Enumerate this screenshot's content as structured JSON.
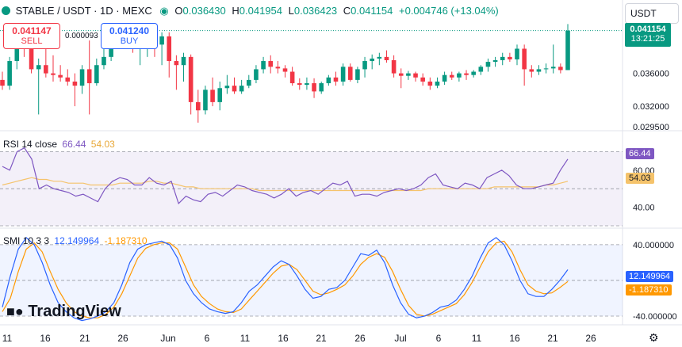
{
  "header": {
    "symbol": "STABLE / USDT · 1D · MEXC",
    "o_label": "O",
    "o_value": "0.036430",
    "h_label": "H",
    "h_value": "0.041954",
    "l_label": "L",
    "l_value": "0.036423",
    "c_label": "C",
    "c_value": "0.041154",
    "change": "+0.004746 (+13.04%)"
  },
  "currency_select": {
    "value": "USDT"
  },
  "trade_buttons": {
    "sell_price": "0.041147",
    "sell_label": "SELL",
    "spread": "0.000093",
    "buy_price": "0.041240",
    "buy_label": "BUY"
  },
  "price_axis": {
    "ticks": [
      "0.036000",
      "0.032000",
      "0.029500"
    ],
    "last_price": "0.041154",
    "countdown": "13:21:25"
  },
  "rsi": {
    "label": "RSI",
    "params": "14 close",
    "value": "66.44",
    "ma_value": "54.03",
    "ticks": [
      "60.00",
      "40.00"
    ]
  },
  "smi": {
    "label": "SMI",
    "params": "10 3 3",
    "value": "12.149964",
    "signal_value": "-1.187310",
    "ticks": [
      "40.000000",
      "-40.000000"
    ]
  },
  "time_axis": {
    "labels": [
      "11",
      "16",
      "21",
      "26",
      "Jun",
      "6",
      "11",
      "16",
      "21",
      "26",
      "Jul",
      "6",
      "11",
      "16",
      "21",
      "26"
    ]
  },
  "logo": {
    "text": "TradingView"
  },
  "colors": {
    "up": "#089981",
    "down": "#f23645",
    "rsi": "#7e57c2",
    "rsi_ma": "#f5c36b",
    "smi": "#2962ff",
    "smi_signal": "#ff9800"
  },
  "chart_data": [
    {
      "type": "candlestick",
      "title": "STABLE / USDT · 1D · MEXC",
      "ylim": [
        0.0295,
        0.043
      ],
      "series": [
        {
          "name": "STABLE / USDT",
          "ohlc": [
            [
              0.0352,
              0.0362,
              0.034,
              0.0345
            ],
            [
              0.0345,
              0.038,
              0.034,
              0.0375
            ],
            [
              0.0375,
              0.042,
              0.0365,
              0.041
            ],
            [
              0.041,
              0.0415,
              0.038,
              0.039
            ],
            [
              0.039,
              0.0395,
              0.036,
              0.0365
            ],
            [
              0.0365,
              0.0378,
              0.031,
              0.037
            ],
            [
              0.037,
              0.04,
              0.0355,
              0.036
            ],
            [
              0.036,
              0.0382,
              0.035,
              0.0358
            ],
            [
              0.0358,
              0.037,
              0.035,
              0.0355
            ],
            [
              0.0355,
              0.0365,
              0.0345,
              0.035
            ],
            [
              0.035,
              0.036,
              0.032,
              0.0345
            ],
            [
              0.0345,
              0.037,
              0.0335,
              0.0365
            ],
            [
              0.0365,
              0.04,
              0.031,
              0.0348
            ],
            [
              0.0348,
              0.0378,
              0.0345,
              0.037
            ],
            [
              0.037,
              0.0395,
              0.0365,
              0.038
            ],
            [
              0.038,
              0.04,
              0.0375,
              0.0395
            ],
            [
              0.0395,
              0.0407,
              0.039,
              0.04
            ],
            [
              0.04,
              0.0407,
              0.039,
              0.0395
            ],
            [
              0.0395,
              0.0402,
              0.0385,
              0.039
            ],
            [
              0.039,
              0.0402,
              0.037,
              0.0398
            ],
            [
              0.0398,
              0.0405,
              0.038,
              0.04
            ],
            [
              0.04,
              0.041,
              0.038,
              0.0395
            ],
            [
              0.0395,
              0.041,
              0.037,
              0.0405
            ],
            [
              0.0405,
              0.041,
              0.0355,
              0.0375
            ],
            [
              0.0375,
              0.0382,
              0.034,
              0.037
            ],
            [
              0.037,
              0.0385,
              0.035,
              0.038
            ],
            [
              0.038,
              0.0383,
              0.031,
              0.0325
            ],
            [
              0.0325,
              0.034,
              0.03,
              0.0315
            ],
            [
              0.0315,
              0.0345,
              0.031,
              0.034
            ],
            [
              0.034,
              0.0355,
              0.032,
              0.0325
            ],
            [
              0.0325,
              0.035,
              0.0315,
              0.0342
            ],
            [
              0.0342,
              0.0358,
              0.0335,
              0.0345
            ],
            [
              0.0345,
              0.0355,
              0.0335,
              0.0338
            ],
            [
              0.0338,
              0.0352,
              0.0335,
              0.0345
            ],
            [
              0.0345,
              0.0358,
              0.0342,
              0.0352
            ],
            [
              0.0352,
              0.037,
              0.0348,
              0.0365
            ],
            [
              0.0365,
              0.038,
              0.036,
              0.0375
            ],
            [
              0.0375,
              0.0382,
              0.036,
              0.0368
            ],
            [
              0.0368,
              0.0375,
              0.036,
              0.0366
            ],
            [
              0.0366,
              0.037,
              0.0355,
              0.0362
            ],
            [
              0.0362,
              0.0368,
              0.0345,
              0.0348
            ],
            [
              0.0348,
              0.0354,
              0.034,
              0.0346
            ],
            [
              0.0346,
              0.0355,
              0.034,
              0.0348
            ],
            [
              0.0348,
              0.0354,
              0.033,
              0.0338
            ],
            [
              0.0338,
              0.035,
              0.0335,
              0.0348
            ],
            [
              0.0348,
              0.0358,
              0.0345,
              0.0355
            ],
            [
              0.0355,
              0.0362,
              0.0345,
              0.035
            ],
            [
              0.035,
              0.0372,
              0.0345,
              0.0368
            ],
            [
              0.0368,
              0.0372,
              0.035,
              0.0352
            ],
            [
              0.0352,
              0.0368,
              0.0348,
              0.0365
            ],
            [
              0.0365,
              0.038,
              0.0355,
              0.0375
            ],
            [
              0.0375,
              0.0383,
              0.0365,
              0.0378
            ],
            [
              0.0378,
              0.0385,
              0.037,
              0.038
            ],
            [
              0.038,
              0.0388,
              0.0373,
              0.0376
            ],
            [
              0.0376,
              0.0382,
              0.0355,
              0.036
            ],
            [
              0.036,
              0.0366,
              0.0342,
              0.0357
            ],
            [
              0.0357,
              0.0363,
              0.0352,
              0.036
            ],
            [
              0.036,
              0.0362,
              0.035,
              0.0355
            ],
            [
              0.0355,
              0.036,
              0.0345,
              0.035
            ],
            [
              0.035,
              0.0355,
              0.034,
              0.0345
            ],
            [
              0.0345,
              0.0355,
              0.0342,
              0.035
            ],
            [
              0.035,
              0.0362,
              0.0346,
              0.0358
            ],
            [
              0.0358,
              0.0362,
              0.0352,
              0.0355
            ],
            [
              0.0355,
              0.0362,
              0.035,
              0.036
            ],
            [
              0.036,
              0.0364,
              0.0352,
              0.0358
            ],
            [
              0.0358,
              0.0364,
              0.0355,
              0.0362
            ],
            [
              0.0362,
              0.037,
              0.0358,
              0.0368
            ],
            [
              0.0368,
              0.0378,
              0.0362,
              0.0374
            ],
            [
              0.0374,
              0.038,
              0.0368,
              0.0376
            ],
            [
              0.0376,
              0.0385,
              0.037,
              0.038
            ],
            [
              0.038,
              0.0385,
              0.0374,
              0.0377
            ],
            [
              0.0377,
              0.0395,
              0.037,
              0.039
            ],
            [
              0.039,
              0.0395,
              0.0345,
              0.0365
            ],
            [
              0.0365,
              0.037,
              0.0355,
              0.0362
            ],
            [
              0.0362,
              0.037,
              0.0358,
              0.0365
            ],
            [
              0.0365,
              0.0372,
              0.036,
              0.0366
            ],
            [
              0.0366,
              0.0395,
              0.036,
              0.0368
            ],
            [
              0.0368,
              0.0372,
              0.036,
              0.0364
            ],
            [
              0.0364,
              0.042,
              0.0364,
              0.0412
            ]
          ]
        }
      ]
    },
    {
      "type": "line",
      "title": "RSI 14 close",
      "ylim": [
        30,
        80
      ],
      "series": [
        {
          "name": "RSI",
          "values": [
            62,
            60,
            70,
            72,
            66,
            50,
            52,
            50,
            49,
            48,
            46,
            47,
            45,
            43,
            50,
            54,
            56,
            55,
            52,
            52,
            56,
            53,
            52,
            54,
            42,
            46,
            44,
            43,
            47,
            48,
            46,
            49,
            52,
            51,
            49,
            48,
            47,
            45,
            47,
            50,
            46,
            48,
            49,
            47,
            50,
            53,
            52,
            54,
            46,
            47,
            47,
            46,
            48,
            49,
            50,
            49,
            50,
            52,
            56,
            58,
            52,
            51,
            50,
            53,
            52,
            50,
            56,
            58,
            60,
            57,
            52,
            50,
            50,
            51,
            52,
            53,
            60,
            66
          ]
        },
        {
          "name": "MA",
          "values": [
            52,
            53,
            54,
            55,
            56,
            55,
            55,
            54,
            54,
            53,
            53,
            53,
            52,
            52,
            52,
            52,
            53,
            53,
            53,
            53,
            54,
            54,
            53,
            53,
            52,
            51,
            51,
            50,
            50,
            50,
            50,
            50,
            50,
            50,
            50,
            49,
            49,
            49,
            49,
            49,
            49,
            49,
            49,
            49,
            49,
            49,
            49,
            49,
            49,
            49,
            49,
            49,
            49,
            49,
            49,
            49,
            49,
            49,
            50,
            50,
            50,
            50,
            50,
            50,
            50,
            50,
            50,
            51,
            51,
            51,
            51,
            51,
            51,
            51,
            52,
            52,
            53,
            54
          ]
        }
      ]
    },
    {
      "type": "line",
      "title": "SMI 10 3 3",
      "ylim": [
        -48,
        55
      ],
      "series": [
        {
          "name": "SMI",
          "values": [
            -30,
            5,
            35,
            48,
            40,
            20,
            -5,
            -25,
            -35,
            -42,
            -45,
            -43,
            -40,
            -35,
            -25,
            -5,
            20,
            35,
            40,
            42,
            44,
            40,
            25,
            0,
            -15,
            -25,
            -32,
            -35,
            -37,
            -35,
            -25,
            -12,
            -5,
            5,
            15,
            22,
            18,
            5,
            -10,
            -20,
            -18,
            -10,
            -8,
            0,
            15,
            30,
            28,
            34,
            20,
            -5,
            -25,
            -38,
            -42,
            -40,
            -36,
            -30,
            -28,
            -22,
            -10,
            5,
            25,
            42,
            48,
            40,
            22,
            0,
            -15,
            -18,
            -18,
            -10,
            0,
            12
          ]
        },
        {
          "name": "Signal",
          "values": [
            -35,
            -20,
            10,
            35,
            42,
            32,
            10,
            -10,
            -25,
            -35,
            -40,
            -42,
            -42,
            -38,
            -30,
            -15,
            5,
            25,
            36,
            40,
            42,
            42,
            35,
            15,
            -5,
            -18,
            -26,
            -32,
            -35,
            -36,
            -32,
            -22,
            -12,
            -2,
            8,
            16,
            18,
            12,
            0,
            -12,
            -16,
            -14,
            -10,
            -5,
            5,
            18,
            26,
            30,
            26,
            10,
            -10,
            -28,
            -38,
            -40,
            -38,
            -34,
            -30,
            -26,
            -16,
            -2,
            15,
            32,
            42,
            44,
            32,
            12,
            -5,
            -12,
            -15,
            -14,
            -8,
            -1.19
          ]
        }
      ]
    }
  ]
}
